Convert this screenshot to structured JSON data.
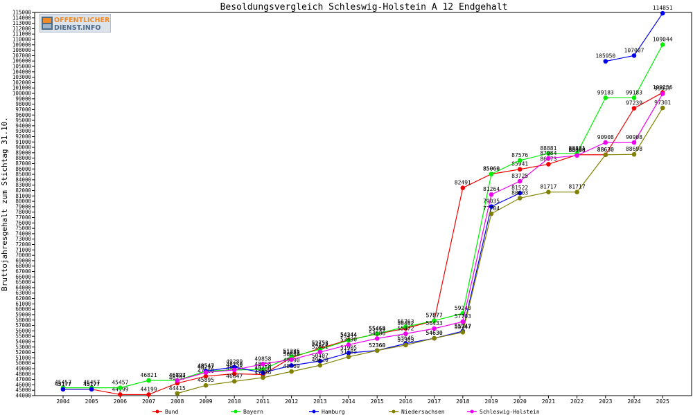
{
  "logo": {
    "line1": "OFFENTLICHER",
    "line2": "DIENST.INFO",
    "accent": "#f08a24",
    "base": "#4a6a8a"
  },
  "chart_data": {
    "type": "line",
    "title": "Besoldungsvergleich Schleswig-Holstein A 12 Endgehalt",
    "ylabel": "Bruttojahresgehalt zum Stichtag 31.10.",
    "xlabel": "",
    "ylim": [
      44000,
      115000
    ],
    "ytick_step": 1000,
    "categories": [
      "2004",
      "2005",
      "2006",
      "2007",
      "2008",
      "2009",
      "2010",
      "2011",
      "2012",
      "2013",
      "2014",
      "2015",
      "2016",
      "2017",
      "2018",
      "2019",
      "2020",
      "2021",
      "2022",
      "2023",
      "2024",
      "2025"
    ],
    "series": [
      {
        "name": "Bund",
        "color": "#ee0000",
        "values": [
          45177,
          45177,
          44199,
          44199,
          46297,
          47600,
          48050,
          47900,
          51055,
          52753,
          54344,
          55414,
          56462,
          57877,
          82491,
          85060,
          85941,
          86873,
          88630,
          88630,
          97239,
          100156
        ]
      },
      {
        "name": "Bayern",
        "color": "#00ee00",
        "values": [
          45457,
          45457,
          45457,
          46821,
          46823,
          48547,
          48759,
          48858,
          51235,
          52575,
          54244,
          55469,
          56763,
          57877,
          59240,
          85060,
          87576,
          88881,
          88881,
          99183,
          99183,
          109044
        ]
      },
      {
        "name": "Hamburg",
        "color": "#0000ee",
        "values": [
          45177,
          45177,
          null,
          null,
          null,
          48547,
          49289,
          48250,
          49590,
          50407,
          51905,
          52360,
          53645,
          54630,
          55947,
          79035,
          81522,
          null,
          null,
          105950,
          107007,
          114851
        ]
      },
      {
        "name": "Niedersachsen",
        "color": "#808000",
        "values": [
          null,
          null,
          null,
          null,
          44415,
          45895,
          46647,
          47336,
          48469,
          49620,
          51185,
          52360,
          53365,
          54630,
          55747,
          77704,
          80603,
          81717,
          81717,
          88630,
          88698,
          97301
        ]
      },
      {
        "name": "Schleswig-Holstein",
        "color": "#ee00ee",
        "values": [
          null,
          null,
          null,
          null,
          46797,
          48292,
          48750,
          49858,
          50689,
          52061,
          53430,
          54586,
          55472,
          56433,
          57703,
          81264,
          83725,
          87984,
          88494,
          90908,
          90908,
          99937
        ]
      }
    ]
  }
}
